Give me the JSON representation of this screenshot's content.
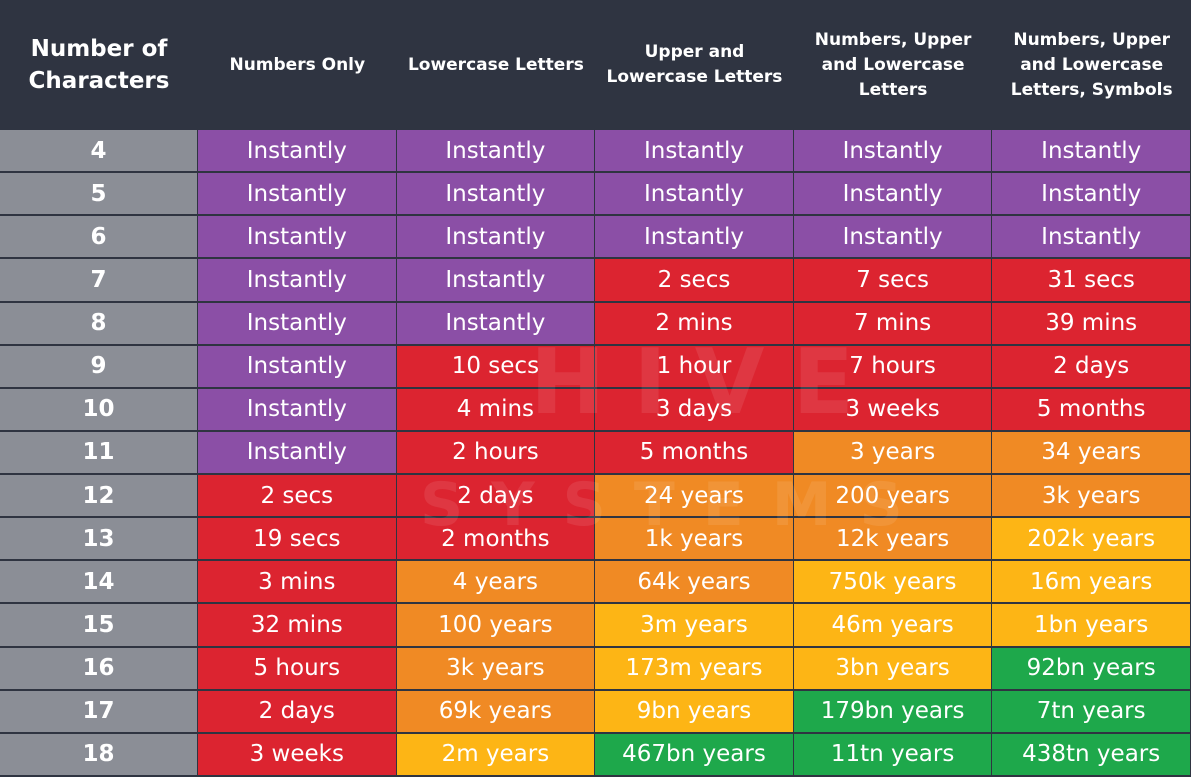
{
  "header": {
    "title": "Number of Characters",
    "columns": [
      "Numbers Only",
      "Lowercase Letters",
      "Upper and Lowercase Letters",
      "Numbers, Upper and Lowercase Letters",
      "Numbers, Upper and Lowercase Letters, Symbols"
    ]
  },
  "watermark": [
    "HIVE",
    "SYSTEMS"
  ],
  "table": {
    "rows": [
      {
        "label": "4",
        "cells": [
          "Instantly",
          "Instantly",
          "Instantly",
          "Instantly",
          "Instantly"
        ],
        "colors": [
          "#8b4fa6",
          "#8b4fa6",
          "#8b4fa6",
          "#8b4fa6",
          "#8b4fa6"
        ]
      },
      {
        "label": "5",
        "cells": [
          "Instantly",
          "Instantly",
          "Instantly",
          "Instantly",
          "Instantly"
        ],
        "colors": [
          "#8b4fa6",
          "#8b4fa6",
          "#8b4fa6",
          "#8b4fa6",
          "#8b4fa6"
        ]
      },
      {
        "label": "6",
        "cells": [
          "Instantly",
          "Instantly",
          "Instantly",
          "Instantly",
          "Instantly"
        ],
        "colors": [
          "#8b4fa6",
          "#8b4fa6",
          "#8b4fa6",
          "#8b4fa6",
          "#8b4fa6"
        ]
      },
      {
        "label": "7",
        "cells": [
          "Instantly",
          "Instantly",
          "2 secs",
          "7 secs",
          "31 secs"
        ],
        "colors": [
          "#8b4fa6",
          "#8b4fa6",
          "#dc2430",
          "#dc2430",
          "#dc2430"
        ]
      },
      {
        "label": "8",
        "cells": [
          "Instantly",
          "Instantly",
          "2 mins",
          "7 mins",
          "39 mins"
        ],
        "colors": [
          "#8b4fa6",
          "#8b4fa6",
          "#dc2430",
          "#dc2430",
          "#dc2430"
        ]
      },
      {
        "label": "9",
        "cells": [
          "Instantly",
          "10 secs",
          "1 hour",
          "7 hours",
          "2 days"
        ],
        "colors": [
          "#8b4fa6",
          "#dc2430",
          "#dc2430",
          "#dc2430",
          "#dc2430"
        ]
      },
      {
        "label": "10",
        "cells": [
          "Instantly",
          "4 mins",
          "3 days",
          "3 weeks",
          "5 months"
        ],
        "colors": [
          "#8b4fa6",
          "#dc2430",
          "#dc2430",
          "#dc2430",
          "#dc2430"
        ]
      },
      {
        "label": "11",
        "cells": [
          "Instantly",
          "2 hours",
          "5 months",
          "3 years",
          "34 years"
        ],
        "colors": [
          "#8b4fa6",
          "#dc2430",
          "#dc2430",
          "#f08a24",
          "#f08a24"
        ]
      },
      {
        "label": "12",
        "cells": [
          "2 secs",
          "2 days",
          "24 years",
          "200 years",
          "3k years"
        ],
        "colors": [
          "#dc2430",
          "#dc2430",
          "#f08a24",
          "#f08a24",
          "#f08a24"
        ]
      },
      {
        "label": "13",
        "cells": [
          "19 secs",
          "2 months",
          "1k years",
          "12k years",
          "202k years"
        ],
        "colors": [
          "#dc2430",
          "#dc2430",
          "#f08a24",
          "#f08a24",
          "#fdb515"
        ]
      },
      {
        "label": "14",
        "cells": [
          "3 mins",
          "4 years",
          "64k years",
          "750k years",
          "16m years"
        ],
        "colors": [
          "#dc2430",
          "#f08a24",
          "#f08a24",
          "#fdb515",
          "#fdb515"
        ]
      },
      {
        "label": "15",
        "cells": [
          "32 mins",
          "100 years",
          "3m years",
          "46m years",
          "1bn years"
        ],
        "colors": [
          "#dc2430",
          "#f08a24",
          "#fdb515",
          "#fdb515",
          "#fdb515"
        ]
      },
      {
        "label": "16",
        "cells": [
          "5 hours",
          "3k years",
          "173m years",
          "3bn years",
          "92bn years"
        ],
        "colors": [
          "#dc2430",
          "#f08a24",
          "#fdb515",
          "#fdb515",
          "#1ea84b"
        ]
      },
      {
        "label": "17",
        "cells": [
          "2 days",
          "69k years",
          "9bn years",
          "179bn years",
          "7tn years"
        ],
        "colors": [
          "#dc2430",
          "#f08a24",
          "#fdb515",
          "#1ea84b",
          "#1ea84b"
        ]
      },
      {
        "label": "18",
        "cells": [
          "3 weeks",
          "2m years",
          "467bn years",
          "11tn years",
          "438tn years"
        ],
        "colors": [
          "#dc2430",
          "#fdb515",
          "#1ea84b",
          "#1ea84b",
          "#1ea84b"
        ]
      }
    ]
  }
}
